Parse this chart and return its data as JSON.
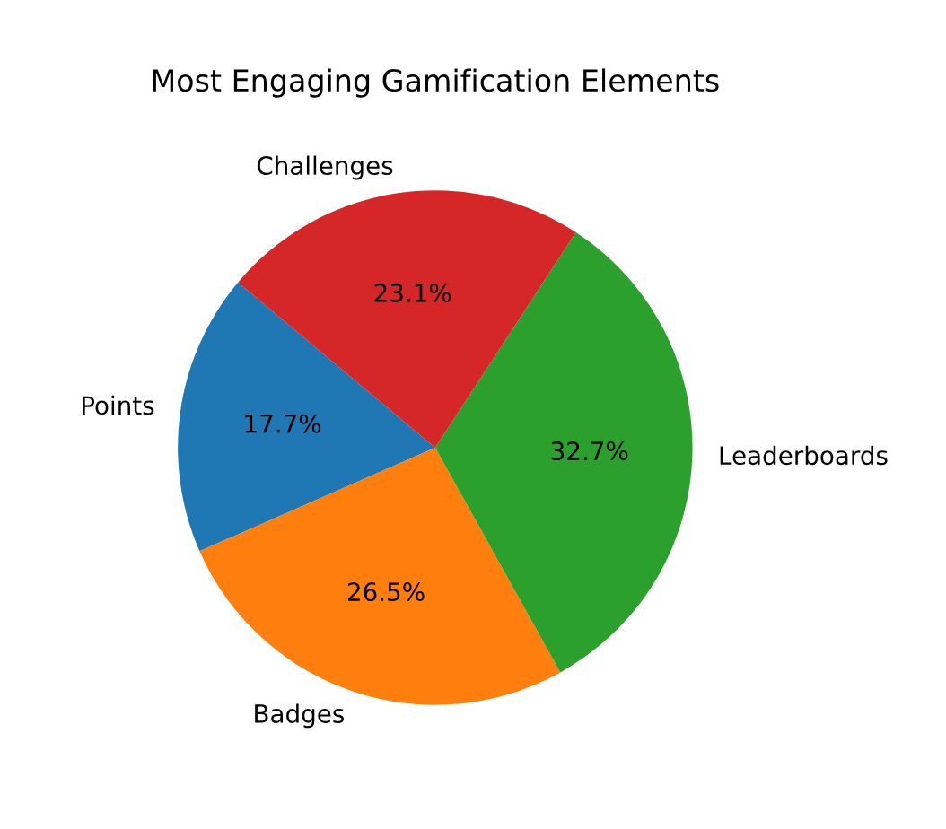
{
  "chart_data": {
    "type": "pie",
    "title": "Most Engaging Gamification Elements",
    "categories": [
      "Points",
      "Badges",
      "Leaderboards",
      "Challenges"
    ],
    "values": [
      17.7,
      26.5,
      32.7,
      23.1
    ],
    "colors": [
      "#1f77b4",
      "#ff7f0e",
      "#2ca02c",
      "#d62728"
    ],
    "value_labels": [
      "17.7%",
      "26.5%",
      "32.7%",
      "23.1%"
    ]
  }
}
